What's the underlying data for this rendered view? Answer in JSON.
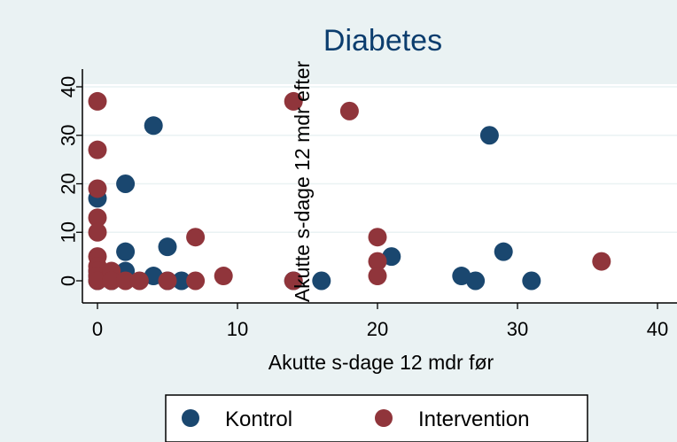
{
  "chart_data": {
    "type": "scatter",
    "title": "Diabetes",
    "xlabel": "Akutte s-dage 12 mdr før",
    "ylabel": "Akutte s-dage 12 mdr efter",
    "xlim": [
      0,
      40
    ],
    "ylim": [
      0,
      40
    ],
    "xticks": [
      "0",
      "10",
      "20",
      "30",
      "40"
    ],
    "yticks": [
      "0",
      "10",
      "20",
      "30",
      "40"
    ],
    "grid": true,
    "legend_position": "bottom",
    "series": [
      {
        "name": "Kontrol",
        "color": "#1a476f",
        "x": [
          0,
          0,
          0,
          0,
          1,
          1,
          2,
          2,
          2,
          4,
          4,
          5,
          5,
          6,
          14,
          16,
          21,
          26,
          27,
          28,
          29,
          31
        ],
        "y": [
          17,
          2,
          1,
          0,
          1,
          0,
          20,
          6,
          2,
          32,
          1,
          7,
          0,
          0,
          0,
          0,
          5,
          1,
          0,
          30,
          6,
          0
        ]
      },
      {
        "name": "Intervention",
        "color": "#90353b",
        "x": [
          0,
          0,
          0,
          0,
          0,
          0,
          0,
          0,
          0,
          0,
          1,
          1,
          2,
          3,
          5,
          7,
          7,
          9,
          14,
          14,
          18,
          20,
          20,
          20,
          36
        ],
        "y": [
          37,
          27,
          19,
          13,
          10,
          5,
          3,
          2,
          1,
          0,
          2,
          0,
          0,
          0,
          0,
          9,
          0,
          1,
          37,
          0,
          35,
          9,
          4,
          1,
          4
        ]
      }
    ]
  }
}
